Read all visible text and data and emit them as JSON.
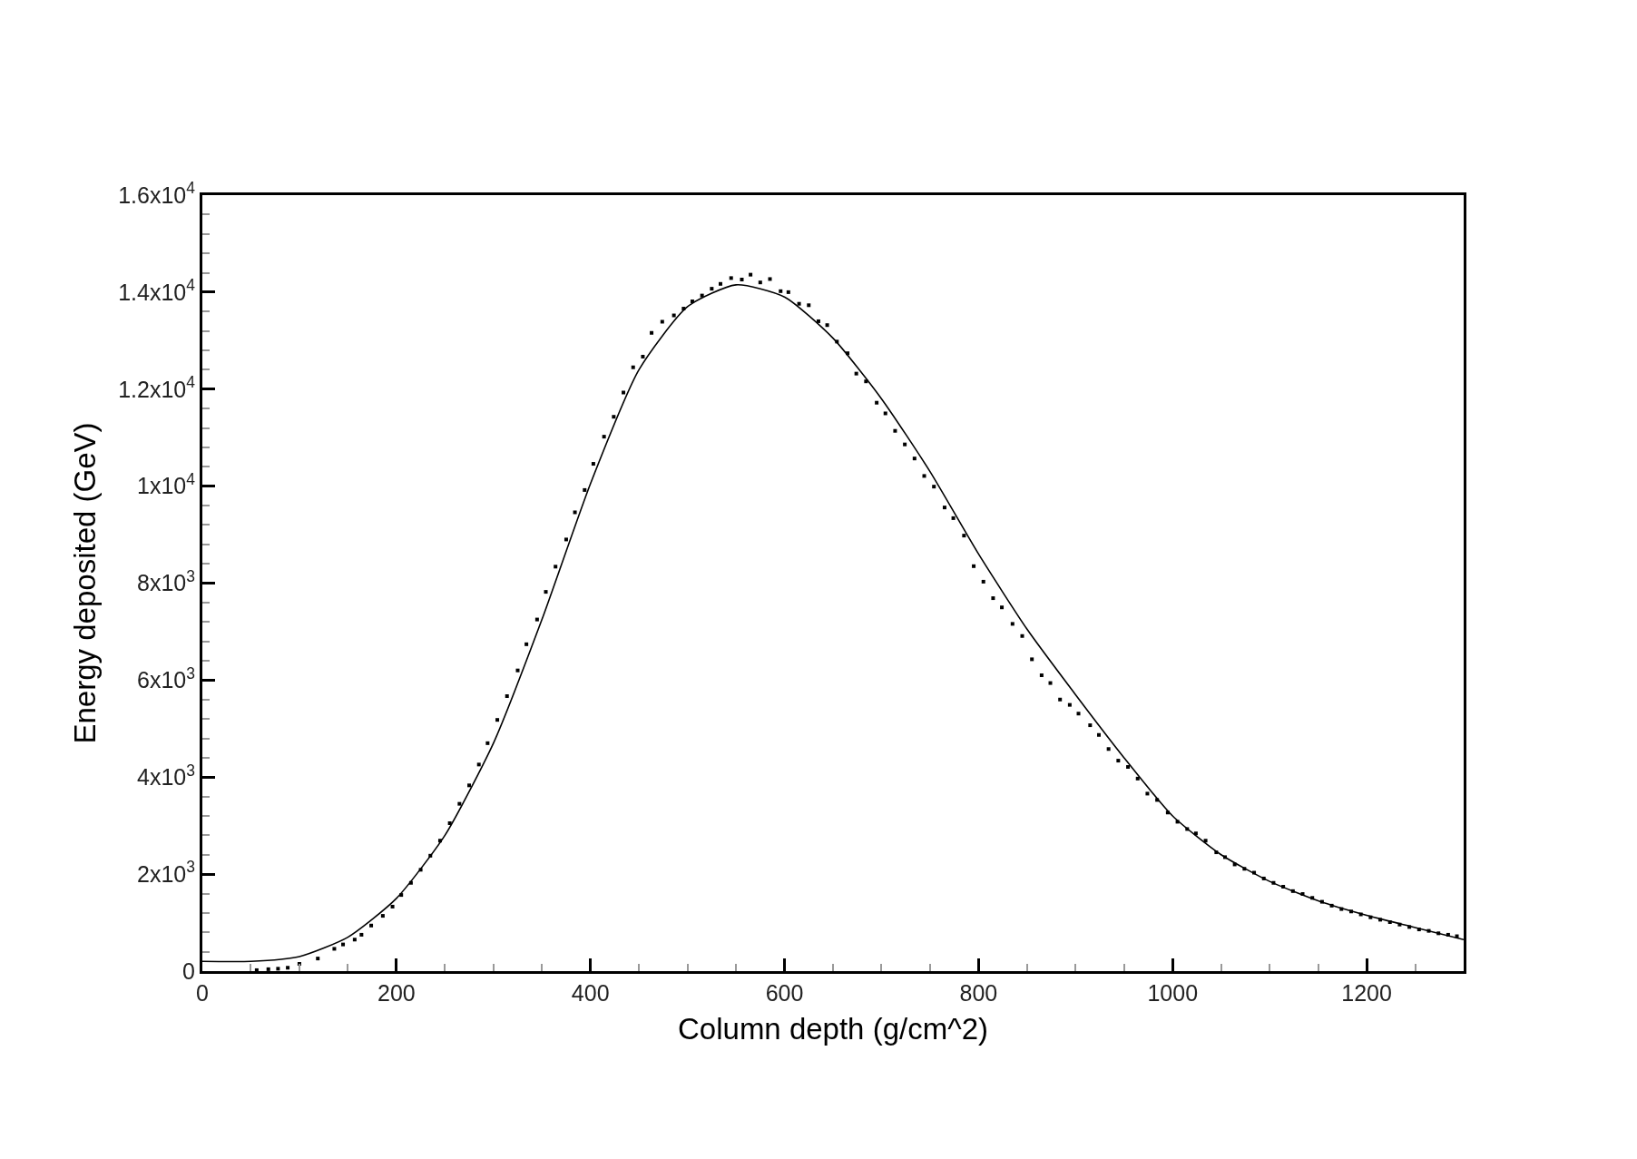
{
  "chart_data": {
    "type": "scatter",
    "xlabel": "Column depth (g/cm^2)",
    "ylabel": "Energy deposited (GeV)",
    "xlim": [
      0,
      1300
    ],
    "xticks": [
      0,
      200,
      400,
      600,
      800,
      1000,
      1200
    ],
    "ylim": [
      0,
      16000
    ],
    "yticks": [
      {
        "value": 0,
        "label": "0"
      },
      {
        "value": 2000,
        "label": "2x10$^{3}$"
      },
      {
        "value": 4000,
        "label": "4x10$^{3}$"
      },
      {
        "value": 6000,
        "label": "6x10$^{3}$"
      },
      {
        "value": 8000,
        "label": "8x10$^{3}$"
      },
      {
        "value": 10000,
        "label": "1x10$^{4}$"
      },
      {
        "value": 12000,
        "label": "1.2x10$^{4}$"
      },
      {
        "value": 14000,
        "label": "1.4x10$^{4}$"
      },
      {
        "value": 16000,
        "label": "1.6x10$^{4}$"
      }
    ],
    "series": [
      {
        "marker": "square",
        "color": "#000000",
        "x": [
          56,
          68,
          78,
          88,
          100,
          119,
          136,
          145,
          157,
          164,
          174,
          186,
          196,
          205,
          215,
          225,
          235,
          245,
          255,
          265,
          275,
          285,
          294,
          304,
          314,
          325,
          334,
          345,
          354,
          364,
          375,
          384,
          394,
          403,
          414,
          424,
          434,
          444,
          454,
          463,
          474,
          486,
          496,
          505,
          515,
          525,
          534,
          545,
          556,
          565,
          575,
          585,
          596,
          604,
          615,
          625,
          635,
          644,
          654,
          665,
          674,
          684,
          695,
          704,
          714,
          724,
          734,
          744,
          754,
          765,
          774,
          785,
          795,
          805,
          815,
          824,
          835,
          845,
          855,
          865,
          874,
          884,
          894,
          903,
          915,
          924,
          934,
          944,
          954,
          964,
          974,
          984,
          995,
          1005,
          1015,
          1024,
          1034,
          1045,
          1054,
          1064,
          1074,
          1084,
          1094,
          1104,
          1114,
          1124,
          1134,
          1144,
          1154,
          1164,
          1174,
          1184,
          1194,
          1204,
          1214,
          1224,
          1234,
          1244,
          1254,
          1264,
          1274,
          1284,
          1293
        ],
        "values": [
          20,
          40,
          50,
          70,
          150,
          260,
          460,
          550,
          650,
          750,
          940,
          1140,
          1330,
          1570,
          1820,
          2090,
          2380,
          2690,
          3050,
          3450,
          3830,
          4260,
          4700,
          5180,
          5670,
          6200,
          6740,
          7250,
          7820,
          8340,
          8900,
          9460,
          9920,
          10460,
          11020,
          11430,
          11930,
          12450,
          12670,
          13160,
          13390,
          13520,
          13660,
          13810,
          13930,
          14070,
          14170,
          14290,
          14260,
          14360,
          14200,
          14270,
          14020,
          14000,
          13760,
          13730,
          13400,
          13320,
          12980,
          12740,
          12320,
          12160,
          11720,
          11500,
          11140,
          10860,
          10570,
          10210,
          9990,
          9560,
          9340,
          8980,
          8350,
          8030,
          7690,
          7500,
          7160,
          6910,
          6430,
          6100,
          5940,
          5600,
          5490,
          5310,
          5070,
          4870,
          4580,
          4340,
          4210,
          3970,
          3660,
          3530,
          3270,
          3080,
          2930,
          2840,
          2690,
          2450,
          2350,
          2200,
          2110,
          2030,
          1910,
          1820,
          1740,
          1650,
          1590,
          1510,
          1430,
          1350,
          1280,
          1230,
          1170,
          1110,
          1060,
          1010,
          960,
          910,
          860,
          830,
          780,
          750,
          720
        ]
      },
      {
        "type": "line",
        "line_style": "solid",
        "color": "#000000",
        "x": [
          0,
          50,
          100,
          150,
          200,
          250,
          300,
          350,
          400,
          450,
          500,
          550,
          600,
          650,
          700,
          750,
          800,
          850,
          900,
          950,
          1000,
          1050,
          1100,
          1150,
          1200,
          1250,
          1300
        ],
        "values": [
          200,
          200,
          300,
          700,
          1500,
          2800,
          4700,
          7250,
          10050,
          12400,
          13700,
          14150,
          13900,
          13050,
          11800,
          10300,
          8600,
          7050,
          5700,
          4400,
          3200,
          2400,
          1850,
          1450,
          1150,
          900,
          650
        ]
      }
    ]
  }
}
